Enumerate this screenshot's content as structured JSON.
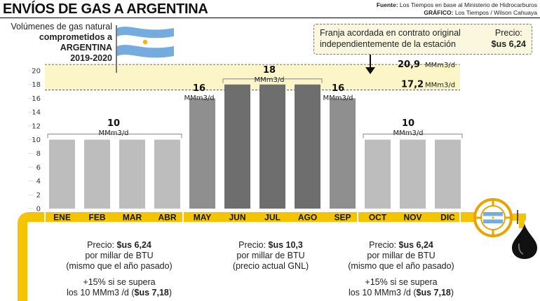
{
  "header": {
    "title": "ENVÍOS DE GAS A ARGENTINA",
    "source_label": "Fuente:",
    "source_text": "Los Tiempos en base al Ministerio de Hidrocarburos",
    "graphic_label": "GRÁFICO:",
    "graphic_text": "Los Tiempos / Wilson Cahuaya"
  },
  "subtitle": {
    "line1": "Volúmenes de gas natural",
    "line2": "comprometidos a",
    "line3": "ARGENTINA",
    "line4": "2019-2020"
  },
  "note": {
    "text": "Franja acordada en contrato original independientemente de la estación",
    "price_label": "Precio:",
    "price_value": "$us 6,24"
  },
  "band": {
    "upper_value": "20,9",
    "lower_value": "17,2",
    "unit": "MMm3/d"
  },
  "group_labels": [
    {
      "value": "10",
      "unit": "MMm3/d"
    },
    {
      "value": "16",
      "unit": "MMm3/d"
    },
    {
      "value": "18",
      "unit": "MMm3/d"
    },
    {
      "value": "16",
      "unit": "MMm3/d"
    },
    {
      "value": "10",
      "unit": "MMm3/d"
    }
  ],
  "prices": [
    {
      "l1a": "Precio: ",
      "l1b": "$us 6,24",
      "l2": "por millar de BTU",
      "l3": "(mismo que el año pasado)",
      "l4": "+15% si se supera",
      "l5a": "los 10 MMm3 /d (",
      "l5b": "$us 7,18",
      "l5c": ")"
    },
    {
      "l1a": "Precio: ",
      "l1b": "$us 10,3",
      "l2": "por millar de BTU",
      "l3": "(precio actual GNL)",
      "l4": "",
      "l5a": "",
      "l5b": "",
      "l5c": ""
    },
    {
      "l1a": "Precio: ",
      "l1b": "$us 6,24",
      "l2": "por millar de BTU",
      "l3": "(mismo que el año pasado)",
      "l4": "+15% si se supera",
      "l5a": "los 10 MMm3 /d (",
      "l5b": "$us 7,18",
      "l5c": ")"
    }
  ],
  "colors": {
    "pipe": "#f5c400",
    "band": "#fbf5c8",
    "bar_light": "#bdbdbd",
    "bar_mid": "#8f8f8f",
    "bar_dark": "#6e6e6e",
    "flag_blue": "#74acdf"
  },
  "chart_data": {
    "type": "bar",
    "categories": [
      "ENE",
      "FEB",
      "MAR",
      "ABR",
      "MAY",
      "JUN",
      "JUL",
      "AGO",
      "SEP",
      "OCT",
      "NOV",
      "DIC"
    ],
    "values": [
      10,
      10,
      10,
      10,
      16,
      18,
      18,
      18,
      16,
      10,
      10,
      10
    ],
    "yticks": [
      0,
      2,
      4,
      6,
      8,
      10,
      12,
      14,
      16,
      18,
      20
    ],
    "ylim": [
      0,
      20.9
    ],
    "band_range": [
      17.2,
      20.9
    ],
    "grid": false,
    "legend": "none"
  }
}
